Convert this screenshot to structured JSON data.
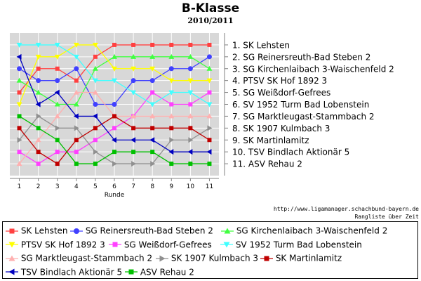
{
  "header": {
    "title": "B-Klasse",
    "subtitle": "2010/2011"
  },
  "footer": {
    "url": "http://www.ligamanager.schachbund-bayern.de",
    "caption": "Rangliste über Zeit"
  },
  "chart_data": {
    "type": "line",
    "xlabel": "Runde",
    "ylabel": "",
    "x": [
      1,
      2,
      3,
      4,
      5,
      6,
      7,
      8,
      9,
      10,
      11
    ],
    "ylim": [
      11,
      1
    ],
    "y_inverted": true,
    "grid": true,
    "legend_position": "bottom",
    "y_tick_labels": [
      "1. SK Lehsten",
      "2. SG Reinersreuth-Bad Steben 2",
      "3. SG Kirchenlaibach 3-Waischenfeld 2",
      "4. PTSV SK Hof 1892 3",
      "5. SG Weißdorf-Gefrees",
      "6. SV 1952 Turm Bad Lobenstein",
      "7. SG Marktleugast-Stammbach 2",
      "8. SK 1907 Kulmbach 3",
      "9. SK Martinlamitz",
      "10. TSV Bindlach Aktionär 5",
      "11. ASV Rehau 2"
    ],
    "series": [
      {
        "name": "SK Lehsten",
        "color": "#ff4040",
        "marker": "square",
        "values": [
          5,
          3,
          3,
          4,
          2,
          1,
          1,
          1,
          1,
          1,
          1
        ]
      },
      {
        "name": "SG Reinersreuth-Bad Steben 2",
        "color": "#4040ff",
        "marker": "circle",
        "values": [
          3,
          4,
          4,
          3,
          6,
          6,
          4,
          4,
          3,
          3,
          2
        ]
      },
      {
        "name": "SG Kirchenlaibach 3-Waischenfeld 2",
        "color": "#40ff40",
        "marker": "triangle-up",
        "values": [
          4,
          5,
          6,
          6,
          3,
          2,
          2,
          2,
          2,
          2,
          3
        ]
      },
      {
        "name": "PTSV SK Hof 1892 3",
        "color": "#ffff00",
        "marker": "triangle-down",
        "values": [
          6,
          2,
          2,
          1,
          1,
          3,
          3,
          3,
          4,
          4,
          4
        ]
      },
      {
        "name": "SG Weißdorf-Gefrees",
        "color": "#ff40ff",
        "marker": "square",
        "values": [
          10,
          11,
          10,
          10,
          9,
          8,
          7,
          5,
          6,
          6,
          5
        ]
      },
      {
        "name": "SV 1952 Turm Bad Lobenstein",
        "color": "#40ffff",
        "marker": "triangle-down",
        "values": [
          1,
          1,
          1,
          2,
          4,
          4,
          5,
          6,
          5,
          5,
          6
        ]
      },
      {
        "name": "SG Marktleugast-Stammbach 2",
        "color": "#ffb0b0",
        "marker": "triangle-up",
        "values": [
          11,
          9,
          7,
          5,
          5,
          7,
          7,
          7,
          7,
          7,
          7
        ]
      },
      {
        "name": "SK 1907 Kulmbach 3",
        "color": "#909090",
        "marker": "triangle-right",
        "values": [
          9,
          7,
          8,
          8,
          10,
          11,
          11,
          11,
          9,
          9,
          8
        ]
      },
      {
        "name": "SK Martinlamitz",
        "color": "#c00000",
        "marker": "square",
        "values": [
          8,
          10,
          11,
          9,
          8,
          7,
          8,
          8,
          8,
          8,
          9
        ]
      },
      {
        "name": "TSV Bindlach Aktionär 5",
        "color": "#0000c0",
        "marker": "triangle-left",
        "values": [
          2,
          6,
          5,
          7,
          7,
          9,
          9,
          9,
          10,
          10,
          10
        ]
      },
      {
        "name": "ASV Rehau 2",
        "color": "#00c000",
        "marker": "square",
        "values": [
          7,
          8,
          9,
          11,
          11,
          10,
          10,
          10,
          11,
          11,
          11
        ]
      }
    ]
  }
}
